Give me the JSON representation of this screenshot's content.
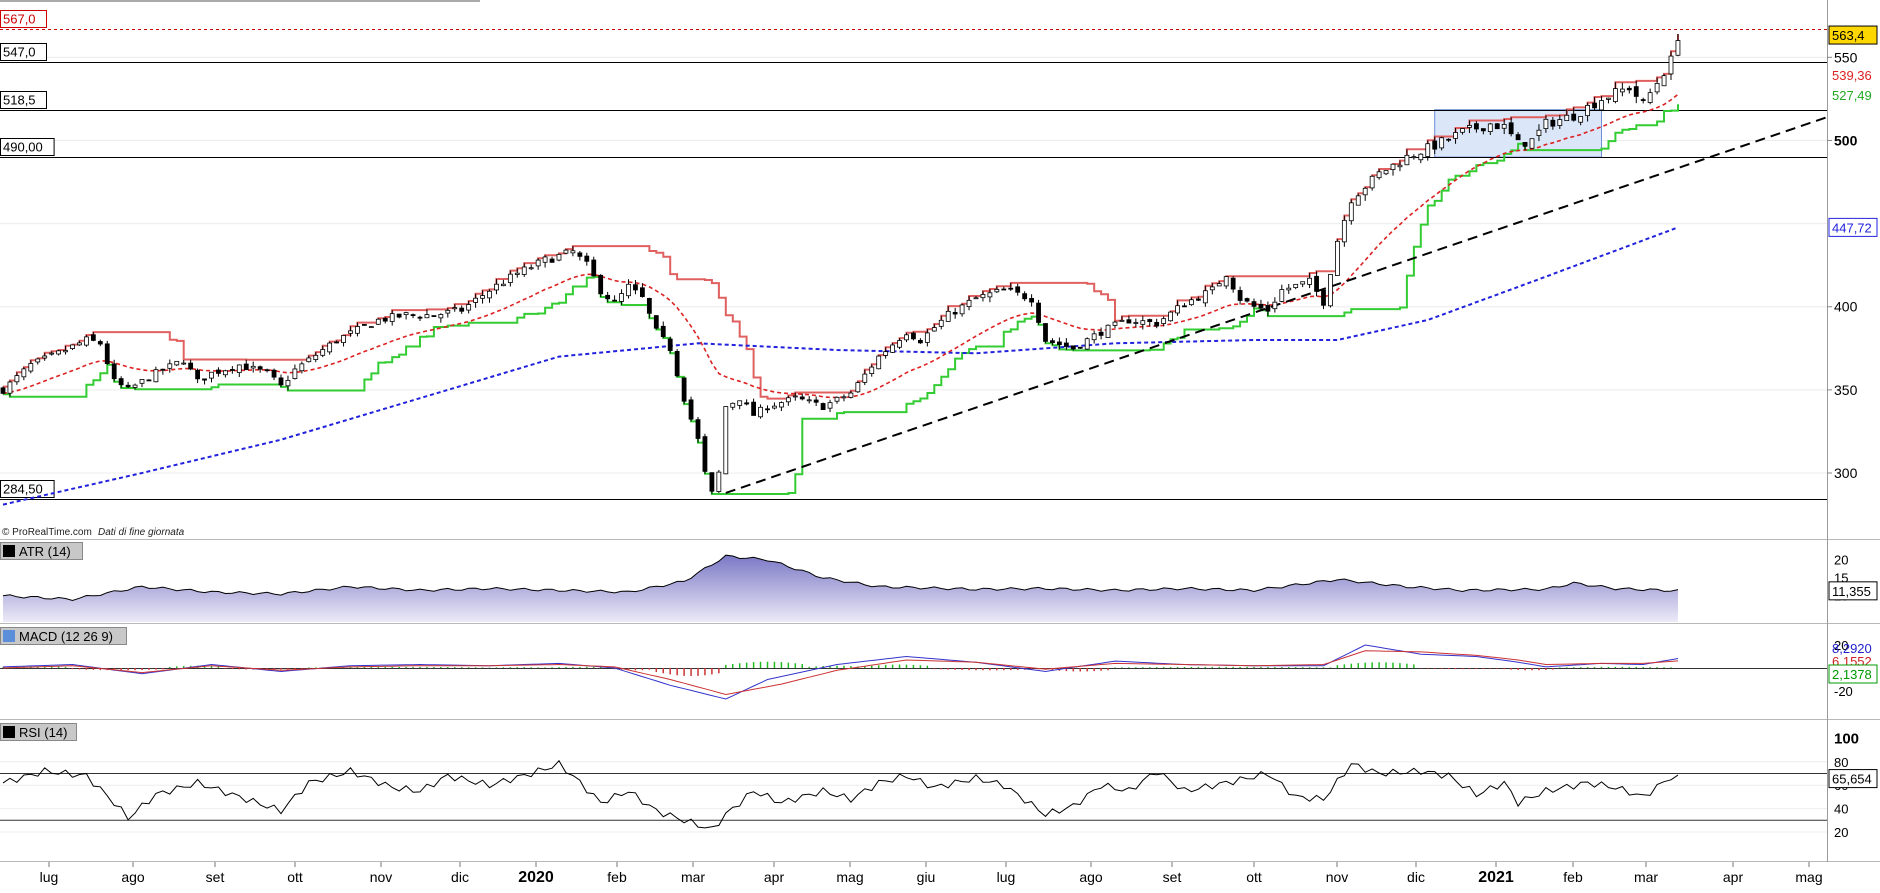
{
  "watermark": {
    "brand": "© ProRealTime.com",
    "note": "Dati di fine giornata"
  },
  "chart_data": [
    {
      "type": "candlestick",
      "panel": "price",
      "y_ticks": [
        300,
        350,
        400,
        500,
        550
      ],
      "y_tick_labels": [
        "300",
        "350",
        "400",
        "500",
        "550"
      ],
      "last_value_label": "563,4",
      "level_lines": [
        {
          "value": 567.0,
          "label": "567,0",
          "color": "#cc0000",
          "style": "dashed"
        },
        {
          "value": 547.0,
          "label": "547,0",
          "color": "#000000",
          "style": "solid"
        },
        {
          "value": 518.5,
          "label": "518,5",
          "color": "#000000",
          "style": "solid"
        },
        {
          "value": 490.0,
          "label": "490,00",
          "color": "#000000",
          "style": "solid"
        },
        {
          "value": 284.5,
          "label": "284,50",
          "color": "#000000",
          "style": "solid"
        }
      ],
      "x_labels": [
        "lug",
        "ago",
        "set",
        "ott",
        "nov",
        "dic",
        "2020",
        "feb",
        "mar",
        "apr",
        "mag",
        "giu",
        "lug",
        "ago",
        "set",
        "ott",
        "nov",
        "dic",
        "2021",
        "feb",
        "mar",
        "apr",
        "mag"
      ],
      "x_labels_bold": [
        "2020",
        "2021"
      ],
      "close_path": [
        [
          0,
          350
        ],
        [
          4,
          365
        ],
        [
          8,
          372
        ],
        [
          12,
          380
        ],
        [
          14,
          378
        ],
        [
          16,
          355
        ],
        [
          18,
          350
        ],
        [
          22,
          360
        ],
        [
          26,
          368
        ],
        [
          28,
          355
        ],
        [
          30,
          360
        ],
        [
          34,
          365
        ],
        [
          38,
          360
        ],
        [
          40,
          352
        ],
        [
          42,
          362
        ],
        [
          48,
          380
        ],
        [
          54,
          392
        ],
        [
          58,
          395
        ],
        [
          62,
          395
        ],
        [
          66,
          398
        ],
        [
          70,
          410
        ],
        [
          74,
          420
        ],
        [
          78,
          428
        ],
        [
          82,
          433
        ],
        [
          84,
          425
        ],
        [
          86,
          410
        ],
        [
          88,
          402
        ],
        [
          90,
          412
        ],
        [
          92,
          405
        ],
        [
          94,
          385
        ],
        [
          96,
          375
        ],
        [
          98,
          345
        ],
        [
          100,
          320
        ],
        [
          101,
          300
        ],
        [
          102,
          288
        ],
        [
          103,
          300
        ],
        [
          104,
          340
        ],
        [
          106,
          345
        ],
        [
          108,
          335
        ],
        [
          110,
          340
        ],
        [
          114,
          345
        ],
        [
          118,
          340
        ],
        [
          122,
          348
        ],
        [
          126,
          370
        ],
        [
          130,
          385
        ],
        [
          132,
          380
        ],
        [
          136,
          395
        ],
        [
          140,
          405
        ],
        [
          144,
          410
        ],
        [
          148,
          405
        ],
        [
          150,
          380
        ],
        [
          154,
          375
        ],
        [
          158,
          385
        ],
        [
          162,
          392
        ],
        [
          166,
          390
        ],
        [
          170,
          402
        ],
        [
          174,
          410
        ],
        [
          176,
          420
        ],
        [
          178,
          405
        ],
        [
          180,
          400
        ],
        [
          182,
          398
        ],
        [
          184,
          410
        ],
        [
          188,
          415
        ],
        [
          190,
          403
        ],
        [
          192,
          440
        ],
        [
          194,
          465
        ],
        [
          198,
          480
        ],
        [
          202,
          490
        ],
        [
          206,
          497
        ],
        [
          210,
          505
        ],
        [
          214,
          510
        ],
        [
          216,
          508
        ],
        [
          218,
          498
        ],
        [
          220,
          500
        ],
        [
          222,
          510
        ],
        [
          226,
          515
        ],
        [
          230,
          525
        ],
        [
          234,
          532
        ],
        [
          236,
          522
        ],
        [
          238,
          535
        ],
        [
          240,
          548
        ],
        [
          241,
          563
        ]
      ],
      "series": [
        {
          "name": "",
          "kind": "candles"
        },
        {
          "name": "",
          "kind": "trailing stop red",
          "color": "#e06060"
        },
        {
          "name": "",
          "kind": "trailing stop green",
          "color": "#33cc33"
        },
        {
          "name": "",
          "kind": "moving average short",
          "color": "#dd2222",
          "value_label": "539,36"
        },
        {
          "name": "",
          "kind": "moving average long",
          "color": "#2222dd",
          "value_label": "447,72",
          "path": [
            [
              0,
              281
            ],
            [
              20,
              300
            ],
            [
              40,
              320
            ],
            [
              60,
              345
            ],
            [
              80,
              370
            ],
            [
              100,
              378
            ],
            [
              120,
              374
            ],
            [
              140,
              372
            ],
            [
              160,
              378
            ],
            [
              180,
              380
            ],
            [
              192,
              380
            ],
            [
              205,
              392
            ],
            [
              220,
              415
            ],
            [
              241,
              447.72
            ]
          ]
        },
        {
          "name": "",
          "kind": "support level",
          "color": "#33cc33",
          "value_label": "527,49"
        }
      ],
      "trendline": {
        "color": "#000000",
        "style": "dashed",
        "from": [
          104,
          288
        ],
        "to": [
          265,
          514
        ]
      },
      "box": {
        "from_t": 206,
        "to_t": 230,
        "low": 490,
        "high": 518.5,
        "fill": "#dbe6f8"
      }
    },
    {
      "type": "area",
      "panel": "atr",
      "label": "ATR (14)",
      "y_ticks": [
        20,
        15,
        10
      ],
      "y_tick_labels": [
        "20",
        "15",
        "10"
      ],
      "last_value_label": "11,355",
      "path": [
        [
          0,
          10
        ],
        [
          10,
          9
        ],
        [
          20,
          12.5
        ],
        [
          30,
          11
        ],
        [
          40,
          10.5
        ],
        [
          50,
          12.5
        ],
        [
          60,
          11.5
        ],
        [
          70,
          12
        ],
        [
          80,
          11.5
        ],
        [
          90,
          11
        ],
        [
          98,
          14
        ],
        [
          104,
          21
        ],
        [
          110,
          20
        ],
        [
          118,
          15
        ],
        [
          126,
          12.5
        ],
        [
          140,
          11.8
        ],
        [
          150,
          12
        ],
        [
          160,
          11.5
        ],
        [
          170,
          12
        ],
        [
          180,
          11.5
        ],
        [
          192,
          14.5
        ],
        [
          202,
          12.5
        ],
        [
          210,
          11.5
        ],
        [
          222,
          11.8
        ],
        [
          226,
          13.5
        ],
        [
          232,
          12
        ],
        [
          241,
          11.355
        ]
      ]
    },
    {
      "type": "line",
      "panel": "macd",
      "label": "MACD (12 26 9)",
      "y_ticks": [
        20,
        -20
      ],
      "y_tick_labels": [
        "20",
        "-20"
      ],
      "value_labels": [
        {
          "text": "8,2920",
          "color": "#2222cc"
        },
        {
          "text": "6,1552",
          "color": "#cc2222"
        },
        {
          "text": "2,1378",
          "color": "#009900"
        }
      ],
      "series": [
        {
          "name": "",
          "color": "#3333cc",
          "path": [
            [
              0,
              1
            ],
            [
              10,
              3
            ],
            [
              20,
              -5
            ],
            [
              30,
              3
            ],
            [
              40,
              -3
            ],
            [
              50,
              2
            ],
            [
              60,
              3
            ],
            [
              70,
              2
            ],
            [
              80,
              4
            ],
            [
              88,
              0
            ],
            [
              96,
              -15
            ],
            [
              104,
              -27
            ],
            [
              110,
              -10
            ],
            [
              120,
              3
            ],
            [
              130,
              10
            ],
            [
              140,
              5
            ],
            [
              150,
              -3
            ],
            [
              160,
              6
            ],
            [
              170,
              3
            ],
            [
              180,
              2
            ],
            [
              190,
              2
            ],
            [
              196,
              20
            ],
            [
              204,
              12
            ],
            [
              212,
              10
            ],
            [
              218,
              5
            ],
            [
              222,
              1
            ],
            [
              230,
              4
            ],
            [
              236,
              3
            ],
            [
              241,
              8.29
            ]
          ]
        },
        {
          "name": "",
          "color": "#cc3333",
          "path": [
            [
              0,
              0
            ],
            [
              10,
              2
            ],
            [
              20,
              -4
            ],
            [
              30,
              2
            ],
            [
              40,
              -2
            ],
            [
              50,
              1
            ],
            [
              60,
              2
            ],
            [
              70,
              2
            ],
            [
              80,
              3
            ],
            [
              88,
              1
            ],
            [
              96,
              -10
            ],
            [
              104,
              -23
            ],
            [
              112,
              -14
            ],
            [
              120,
              -2
            ],
            [
              130,
              7
            ],
            [
              140,
              5
            ],
            [
              150,
              -1
            ],
            [
              160,
              4
            ],
            [
              170,
              3
            ],
            [
              180,
              2
            ],
            [
              190,
              3
            ],
            [
              196,
              15
            ],
            [
              204,
              14
            ],
            [
              212,
              11
            ],
            [
              218,
              7
            ],
            [
              222,
              3
            ],
            [
              230,
              4
            ],
            [
              236,
              4
            ],
            [
              241,
              6.16
            ]
          ]
        }
      ],
      "histogram": [
        {
          "from": 0,
          "to": 10,
          "value": 1.5
        },
        {
          "from": 10,
          "to": 24,
          "value": -2
        },
        {
          "from": 24,
          "to": 32,
          "value": 2
        },
        {
          "from": 32,
          "to": 44,
          "value": -1.5
        },
        {
          "from": 44,
          "to": 70,
          "value": 1
        },
        {
          "from": 70,
          "to": 78,
          "value": 0.8
        },
        {
          "from": 78,
          "to": 88,
          "value": 1
        },
        {
          "from": 88,
          "to": 94,
          "value": -2
        },
        {
          "from": 94,
          "to": 104,
          "value": -7
        },
        {
          "from": 104,
          "to": 116,
          "value": 5.5
        },
        {
          "from": 116,
          "to": 124,
          "value": 2
        },
        {
          "from": 124,
          "to": 134,
          "value": 3
        },
        {
          "from": 134,
          "to": 150,
          "value": -2
        },
        {
          "from": 150,
          "to": 160,
          "value": -3
        },
        {
          "from": 160,
          "to": 192,
          "value": 1
        },
        {
          "from": 192,
          "to": 204,
          "value": 5
        },
        {
          "from": 204,
          "to": 216,
          "value": -1
        },
        {
          "from": 216,
          "to": 224,
          "value": -2
        },
        {
          "from": 224,
          "to": 241,
          "value": 1
        }
      ]
    },
    {
      "type": "line",
      "panel": "rsi",
      "label": "RSI (14)",
      "y_ticks": [
        100,
        80,
        60,
        40,
        20
      ],
      "y_tick_labels": [
        "100",
        "80",
        "60",
        "40",
        "20"
      ],
      "last_value_label": "65,654",
      "bands": [
        70,
        30
      ],
      "path": [
        [
          0,
          62
        ],
        [
          6,
          72
        ],
        [
          12,
          68
        ],
        [
          16,
          45
        ],
        [
          18,
          32
        ],
        [
          22,
          52
        ],
        [
          28,
          62
        ],
        [
          34,
          50
        ],
        [
          40,
          38
        ],
        [
          44,
          62
        ],
        [
          50,
          72
        ],
        [
          56,
          58
        ],
        [
          60,
          55
        ],
        [
          64,
          68
        ],
        [
          70,
          60
        ],
        [
          76,
          70
        ],
        [
          80,
          78
        ],
        [
          82,
          68
        ],
        [
          86,
          45
        ],
        [
          90,
          55
        ],
        [
          94,
          38
        ],
        [
          98,
          30
        ],
        [
          102,
          22
        ],
        [
          104,
          35
        ],
        [
          108,
          55
        ],
        [
          112,
          45
        ],
        [
          118,
          55
        ],
        [
          122,
          48
        ],
        [
          126,
          62
        ],
        [
          130,
          68
        ],
        [
          134,
          58
        ],
        [
          140,
          66
        ],
        [
          144,
          60
        ],
        [
          150,
          35
        ],
        [
          154,
          42
        ],
        [
          158,
          60
        ],
        [
          162,
          55
        ],
        [
          166,
          72
        ],
        [
          170,
          55
        ],
        [
          176,
          62
        ],
        [
          182,
          70
        ],
        [
          186,
          50
        ],
        [
          190,
          48
        ],
        [
          194,
          78
        ],
        [
          198,
          70
        ],
        [
          204,
          72
        ],
        [
          208,
          68
        ],
        [
          212,
          52
        ],
        [
          216,
          62
        ],
        [
          218,
          45
        ],
        [
          222,
          55
        ],
        [
          228,
          62
        ],
        [
          232,
          58
        ],
        [
          236,
          50
        ],
        [
          240,
          67
        ],
        [
          241,
          65.654
        ]
      ]
    }
  ]
}
